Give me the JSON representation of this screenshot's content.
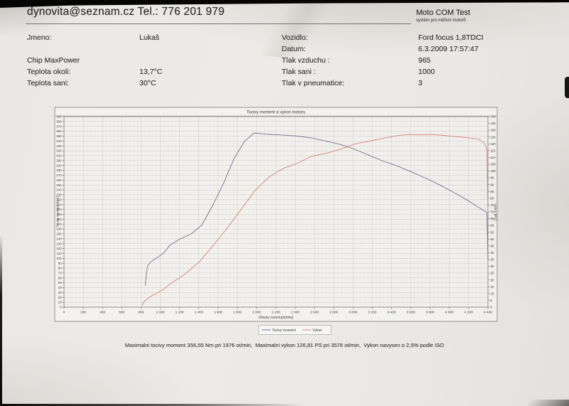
{
  "header": {
    "contact": "dynovita@seznam.cz Tel.: 776 201 979",
    "app_title": "Moto COM Test",
    "app_subtitle": "systém pro měření motorů"
  },
  "info": {
    "jmeno_label": "Jmeno:",
    "jmeno_value": "Lukaš",
    "chip_line": "Chip MaxPower",
    "teplota_okoli_label": "Teplota okoli:",
    "teplota_okoli_value": "13,7°C",
    "teplota_sani_label": "Teplota sani:",
    "teplota_sani_value": "30°C",
    "vozidlo_label": "Vozidlo:",
    "vozidlo_value": "Ford focus 1,8TDCI",
    "datum_label": "Datum:",
    "datum_value": "6.3.2009 17:57:47",
    "tlak_vzduchu_label": "Tlak vzduchu :",
    "tlak_vzduchu_value": "965",
    "tlak_sani_label": "Tlak sani :",
    "tlak_sani_value": "1000",
    "tlak_pneu_label": "Tlak v pneumatice:",
    "tlak_pneu_value": "3"
  },
  "summary": "Maximalni tocivy moment 356,55 Nm pri 1976 ot/min,  Maximalni vykon 126,81 PS pri 3576 ot/min,  Vykon navysen o 2,5% podle ISO",
  "colors": {
    "torque_line": "#73738f",
    "power_line": "#d5837c",
    "grid_major": "#ccc9c4",
    "grid_minor": "#e7e5e1",
    "frame": "#6a6a6a"
  },
  "chart_data": {
    "type": "line",
    "title": "Tocivy moment a vykon motoru",
    "xlabel": "Otacky motoru[ot/min]",
    "ylabel_left": "Tocivy moment [Nm]",
    "ylabel_right": "Vykon [PS]",
    "xlim": [
      0,
      4400
    ],
    "x_tick_step": 200,
    "x_minor_step": 40,
    "ylim_left": [
      0,
      390
    ],
    "left_tick_step": 10,
    "left_minor_step": 2.5,
    "ylim_right": [
      0,
      140
    ],
    "right_tick_step": 5,
    "grid": true,
    "legend_position": "bottom-center",
    "max_torque_note": "356,55 Nm pri 1976 ot/min",
    "max_power_note": "126,81 PS pri 3576 ot/min",
    "series": [
      {
        "name": "Tocivy moment",
        "axis": "left",
        "unit": "Nm",
        "color": "#73738f",
        "points": [
          [
            845,
            45
          ],
          [
            855,
            70
          ],
          [
            870,
            85
          ],
          [
            900,
            93
          ],
          [
            950,
            99
          ],
          [
            1030,
            110
          ],
          [
            1100,
            127
          ],
          [
            1200,
            139
          ],
          [
            1320,
            150
          ],
          [
            1430,
            168
          ],
          [
            1545,
            209
          ],
          [
            1655,
            253
          ],
          [
            1765,
            304
          ],
          [
            1875,
            340
          ],
          [
            1976,
            356.55
          ],
          [
            2100,
            354
          ],
          [
            2280,
            352
          ],
          [
            2430,
            350
          ],
          [
            2575,
            346
          ],
          [
            2720,
            340
          ],
          [
            2870,
            333
          ],
          [
            3020,
            323
          ],
          [
            3165,
            311
          ],
          [
            3310,
            299
          ],
          [
            3460,
            289
          ],
          [
            3606,
            277
          ],
          [
            3755,
            264
          ],
          [
            3900,
            250
          ],
          [
            4045,
            235
          ],
          [
            4195,
            218
          ],
          [
            4305,
            204
          ],
          [
            4390,
            194
          ],
          [
            4400,
            96
          ]
        ]
      },
      {
        "name": "Vykon",
        "axis": "right",
        "unit": "PS",
        "color": "#d5837c",
        "points": [
          [
            810,
            1
          ],
          [
            830,
            4
          ],
          [
            900,
            8
          ],
          [
            956,
            10
          ],
          [
            1030,
            13
          ],
          [
            1100,
            17
          ],
          [
            1250,
            24
          ],
          [
            1400,
            33
          ],
          [
            1545,
            45
          ],
          [
            1693,
            58
          ],
          [
            1840,
            72
          ],
          [
            1986,
            86
          ],
          [
            2134,
            96
          ],
          [
            2280,
            102
          ],
          [
            2430,
            106
          ],
          [
            2575,
            111
          ],
          [
            2720,
            113
          ],
          [
            2870,
            116
          ],
          [
            3020,
            120
          ],
          [
            3165,
            122
          ],
          [
            3310,
            124
          ],
          [
            3460,
            126
          ],
          [
            3576,
            126.81
          ],
          [
            3700,
            126.6
          ],
          [
            3800,
            126.9
          ],
          [
            3900,
            126.4
          ],
          [
            4045,
            125.5
          ],
          [
            4195,
            124.5
          ],
          [
            4305,
            123.5
          ],
          [
            4370,
            120
          ],
          [
            4390,
            115
          ],
          [
            4400,
            68
          ]
        ]
      }
    ]
  }
}
